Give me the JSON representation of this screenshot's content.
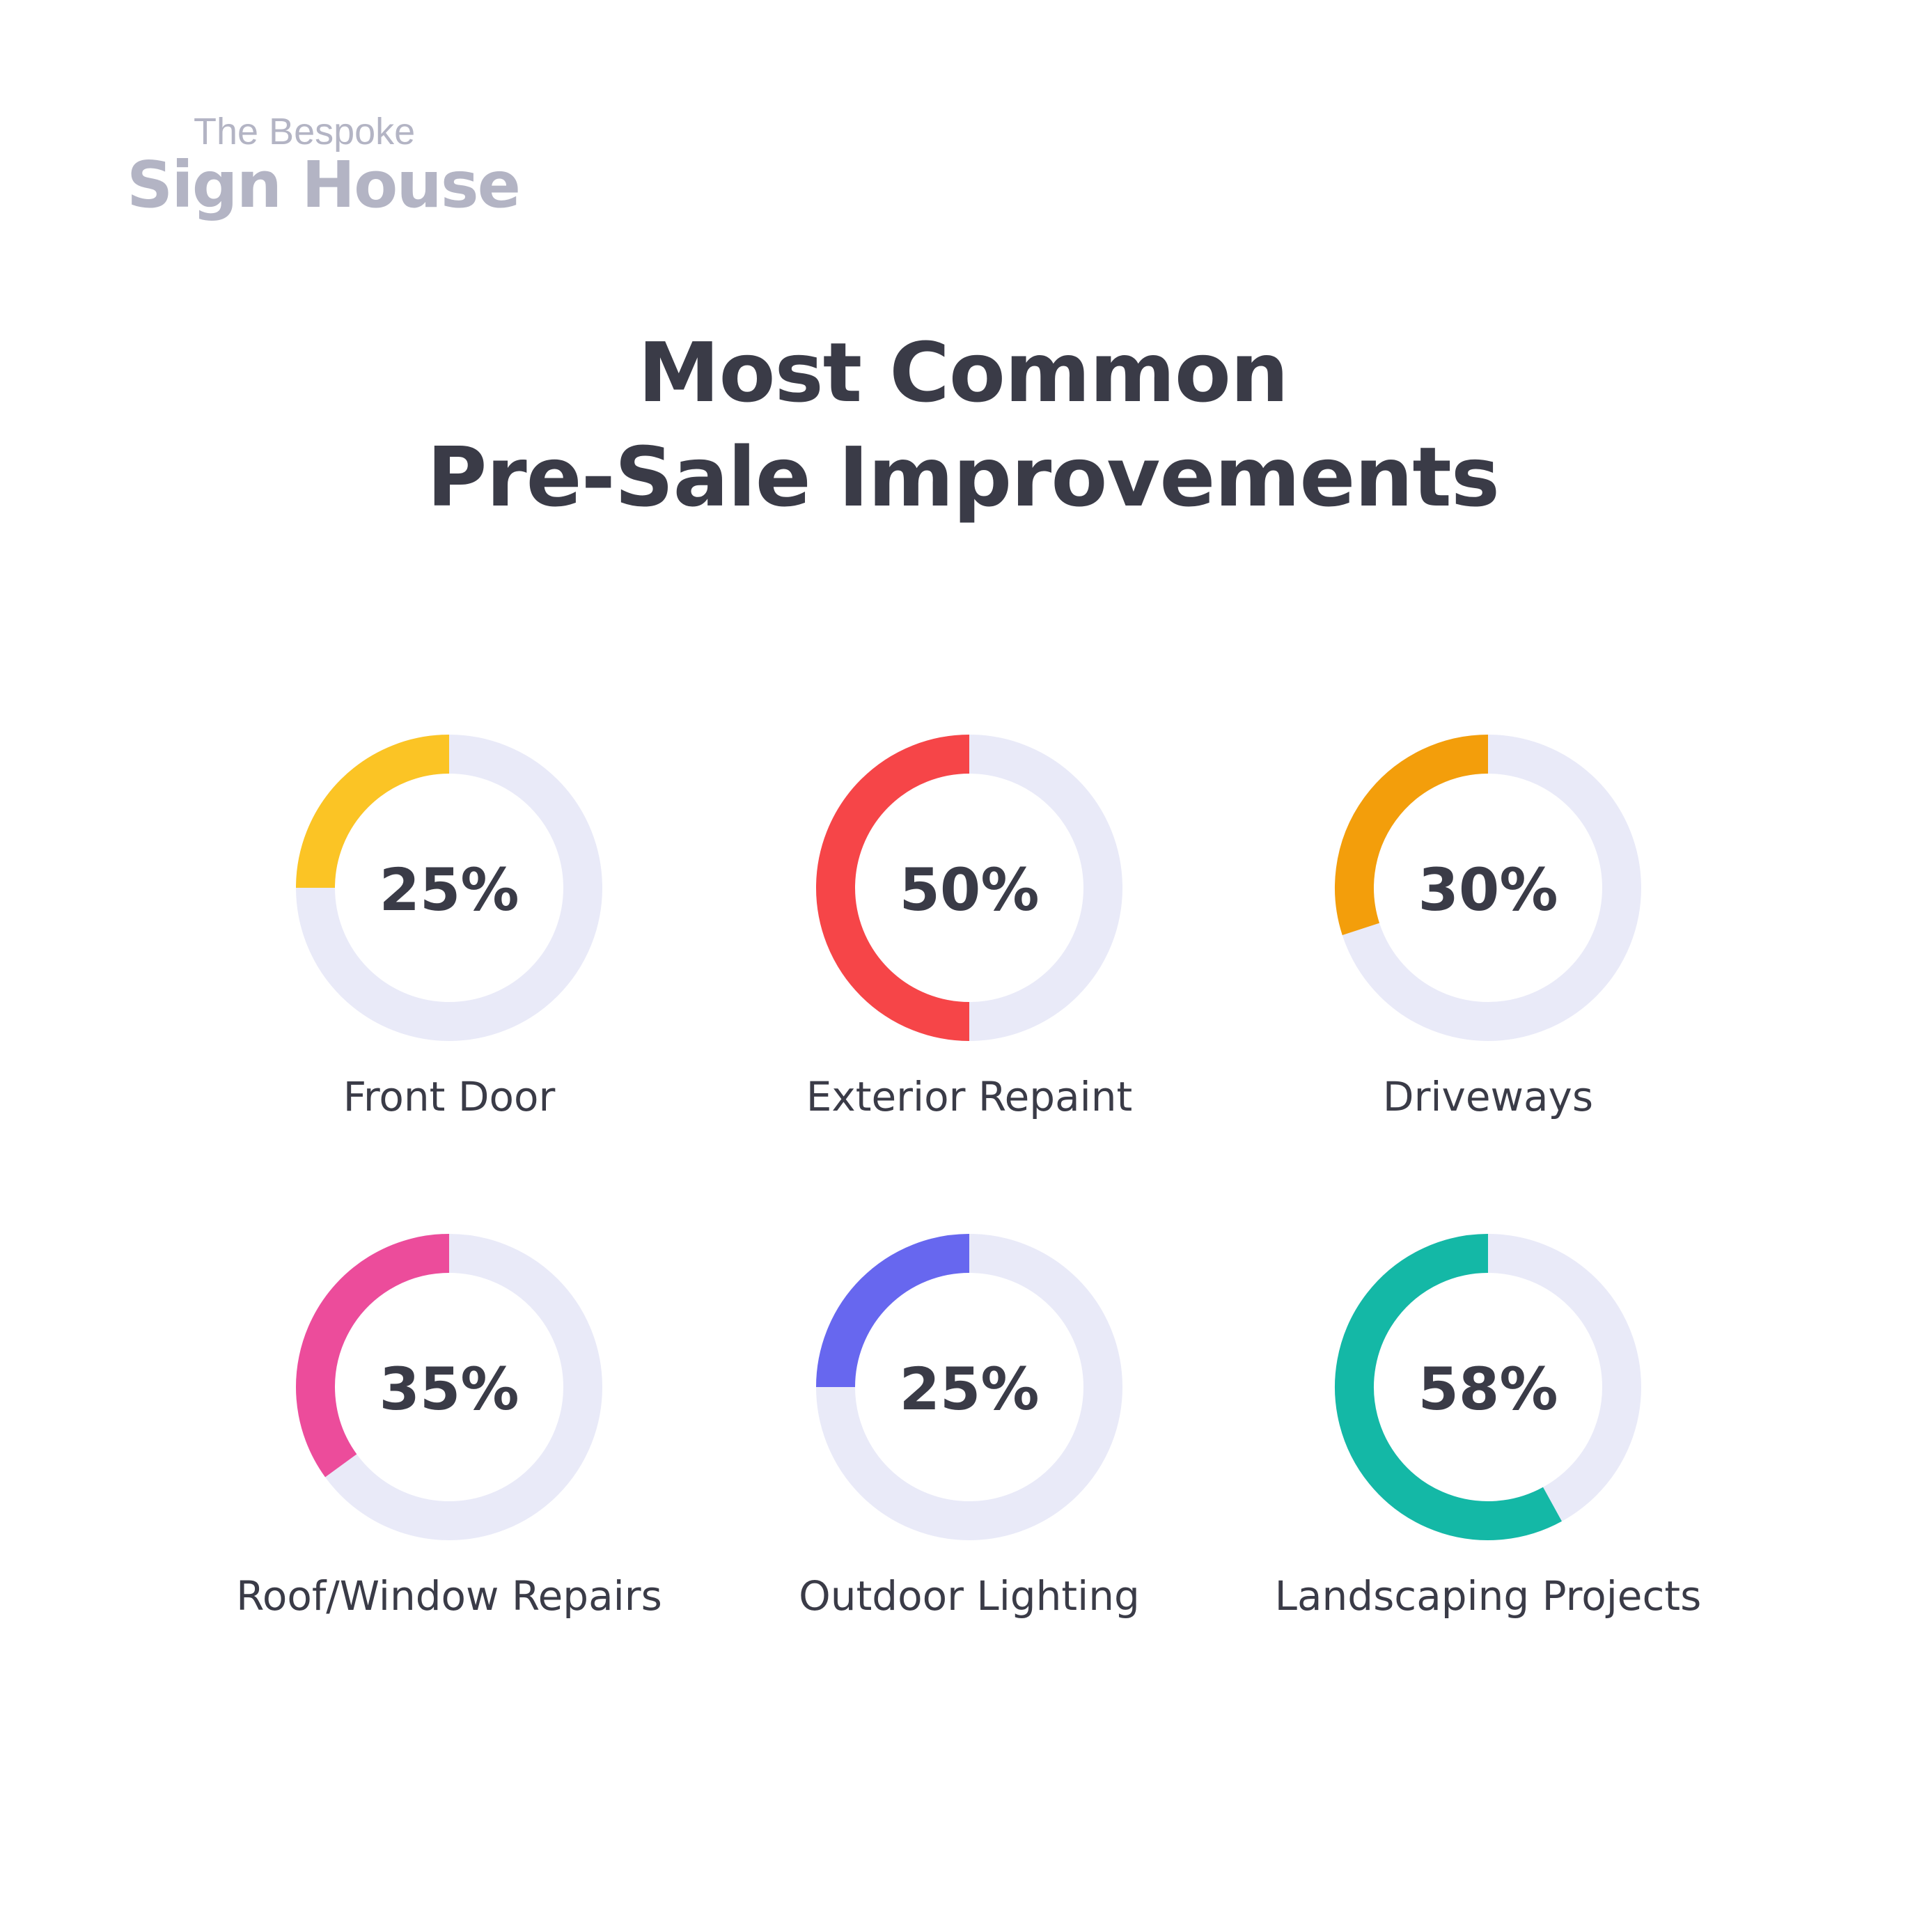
{
  "logo": {
    "line1": "The Bespoke",
    "line2": "Sign House"
  },
  "title": {
    "line1": "Most Common",
    "line2": "Pre-Sale Improvements"
  },
  "colors": {
    "track": "#e9eaf8",
    "text": "#3a3b47",
    "logo": "#b3b4c4"
  },
  "chart_data": {
    "type": "donut",
    "items": [
      {
        "label": "Front Door",
        "value_label": "25%",
        "value": 25,
        "color": "#fbc425"
      },
      {
        "label": "Exterior Repaint",
        "value_label": "50%",
        "value": 50,
        "color": "#f64548"
      },
      {
        "label": "Driveways",
        "value_label": "30%",
        "value": 30,
        "color": "#f39e0b"
      },
      {
        "label": "Roof/Window Repairs",
        "value_label": "35%",
        "value": 35,
        "color": "#ec4c9b"
      },
      {
        "label": "Outdoor Lighting",
        "value_label": "25%",
        "value": 25,
        "color": "#6767ef"
      },
      {
        "label": "Landscaping Projects",
        "value_label": "58%",
        "value": 58,
        "color": "#14b8a6"
      }
    ]
  }
}
